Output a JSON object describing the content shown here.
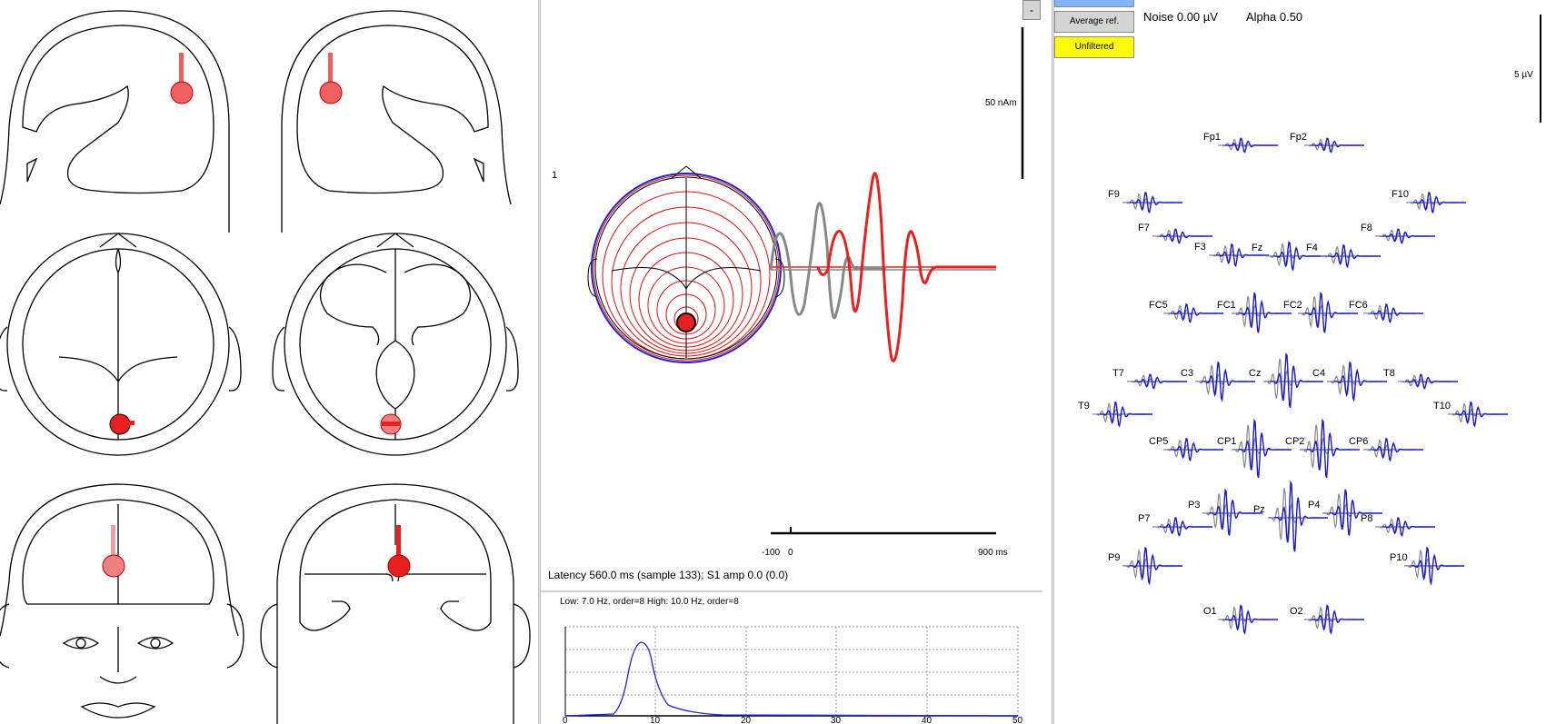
{
  "middle": {
    "source_number": "1",
    "scale_label": "50 nAm",
    "time_axis": {
      "start_label": "-100",
      "zero_label": "0",
      "end_label": "900 ms"
    },
    "status_text": "Latency 560.0 ms (sample 133); S1 amp 0.0 (0.0)",
    "filter_text": "Low: 7.0 Hz, order=8  High: 10.0 Hz, order=8",
    "filter_ticks": [
      "0",
      "10",
      "20",
      "30",
      "40",
      "50"
    ],
    "minus_button": "-"
  },
  "right": {
    "average_ref_label": "Average ref.",
    "unfiltered_label": "Unfiltered",
    "noise_text": "Noise 0.00 µV",
    "alpha_text": "Alpha 0.50",
    "scale_label": "5 µV",
    "electrodes": [
      "Fp1",
      "Fp2",
      "F9",
      "F10",
      "F7",
      "F8",
      "F3",
      "Fz",
      "F4",
      "FC5",
      "FC1",
      "FC2",
      "FC6",
      "T7",
      "C3",
      "Cz",
      "C4",
      "T8",
      "T9",
      "T10",
      "CP5",
      "CP1",
      "CP2",
      "CP6",
      "P7",
      "P3",
      "Pz",
      "P4",
      "P8",
      "P9",
      "P10",
      "O1",
      "O2"
    ]
  },
  "colors": {
    "source": "#e82020",
    "source_light": "#f08080",
    "eeg_blue": "#1a1acc",
    "eeg_gray": "#888888",
    "highlight_yellow": "#ffff00",
    "button_blue": "#80b4ff",
    "button_gray": "#d4d4d4",
    "filter_curve": "#2222dd"
  }
}
